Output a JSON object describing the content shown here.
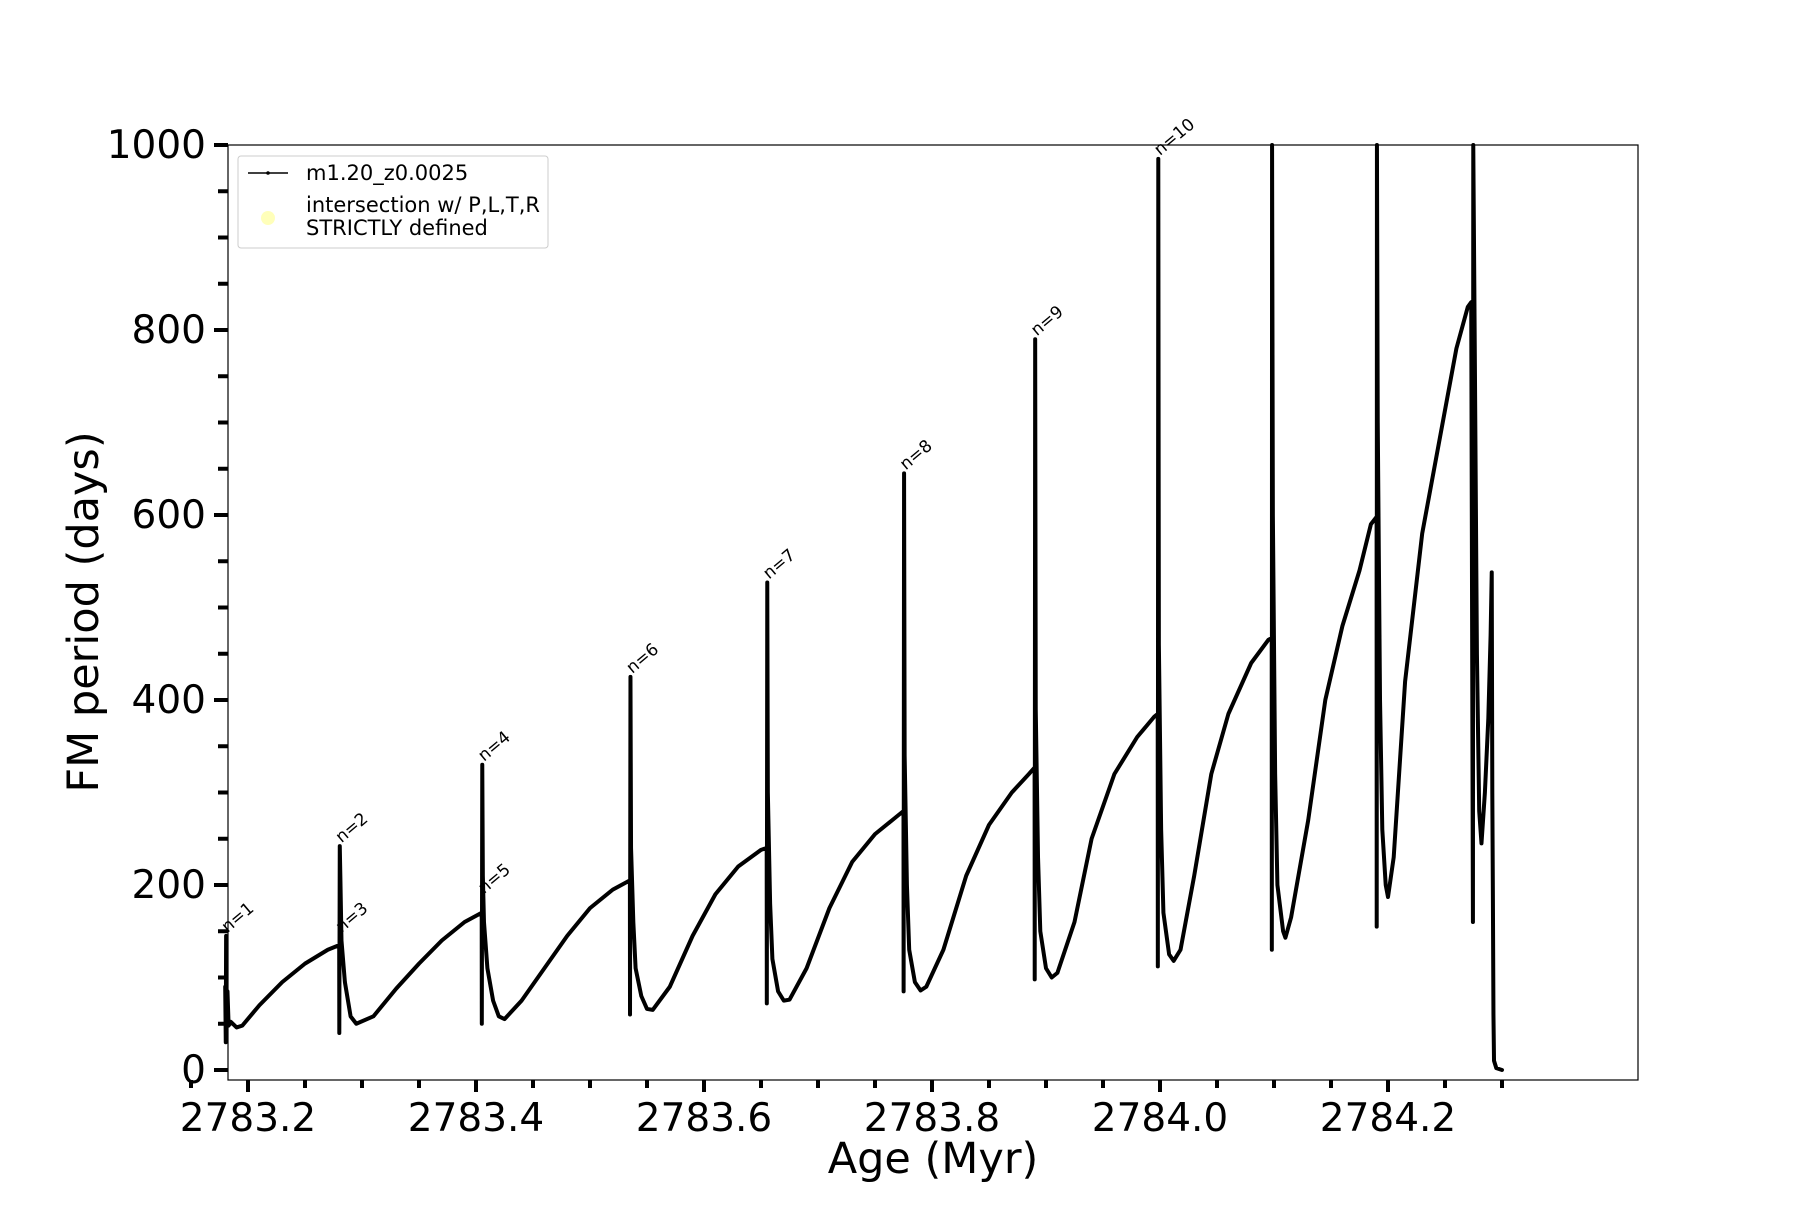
{
  "chart_data": {
    "type": "line",
    "title": "",
    "xlabel": "Age (Myr)",
    "ylabel": "FM period (days)",
    "xlim": [
      2783.13,
      2784.33
    ],
    "ylim": [
      -10,
      1000
    ],
    "x_ticks": [
      2783.2,
      2783.4,
      2783.6,
      2783.8,
      2784.0,
      2784.2
    ],
    "x_tick_labels": [
      "2783.2",
      "2783.4",
      "2783.6",
      "2783.8",
      "2784.0",
      "2784.2"
    ],
    "x_minor_ticks": [
      2783.15,
      2783.25,
      2783.3,
      2783.35,
      2783.45,
      2783.5,
      2783.55,
      2783.65,
      2783.7,
      2783.75,
      2783.85,
      2783.9,
      2783.95,
      2784.05,
      2784.1,
      2784.15,
      2784.25,
      2784.3
    ],
    "y_ticks": [
      0,
      200,
      400,
      600,
      800,
      1000
    ],
    "y_tick_labels": [
      "0",
      "200",
      "400",
      "600",
      "800",
      "1000"
    ],
    "y_minor_ticks": [
      50,
      100,
      150,
      250,
      300,
      350,
      450,
      500,
      550,
      650,
      700,
      750,
      850,
      900,
      950
    ],
    "grid": false,
    "legend_position": "top-left",
    "legend": [
      {
        "label": "m1.20_z0.0025",
        "marker": "line-dot",
        "color": "#000000"
      },
      {
        "label_lines": [
          "intersection w/ P,L,T,R",
          "STRICTLY defined"
        ],
        "marker": "circle",
        "color": "#ffffb3"
      }
    ],
    "series": [
      {
        "name": "m1.20_z0.0025",
        "color": "#000000",
        "points": [
          [
            2783.18,
            90
          ],
          [
            2783.1805,
            30
          ],
          [
            2783.1808,
            145
          ],
          [
            2783.181,
            40
          ],
          [
            2783.182,
            85
          ],
          [
            2783.183,
            48
          ],
          [
            2783.185,
            52
          ],
          [
            2783.19,
            46
          ],
          [
            2783.195,
            48
          ],
          [
            2783.21,
            70
          ],
          [
            2783.23,
            95
          ],
          [
            2783.25,
            115
          ],
          [
            2783.27,
            130
          ],
          [
            2783.28,
            135
          ],
          [
            2783.2801,
            40
          ],
          [
            2783.2805,
            242
          ],
          [
            2783.281,
            210
          ],
          [
            2783.282,
            140
          ],
          [
            2783.285,
            95
          ],
          [
            2783.29,
            58
          ],
          [
            2783.295,
            50
          ],
          [
            2783.31,
            58
          ],
          [
            2783.33,
            88
          ],
          [
            2783.35,
            115
          ],
          [
            2783.37,
            140
          ],
          [
            2783.39,
            160
          ],
          [
            2783.405,
            170
          ],
          [
            2783.4051,
            50
          ],
          [
            2783.4055,
            330
          ],
          [
            2783.406,
            210
          ],
          [
            2783.407,
            160
          ],
          [
            2783.41,
            110
          ],
          [
            2783.415,
            75
          ],
          [
            2783.42,
            58
          ],
          [
            2783.425,
            55
          ],
          [
            2783.44,
            75
          ],
          [
            2783.46,
            110
          ],
          [
            2783.48,
            145
          ],
          [
            2783.5,
            175
          ],
          [
            2783.52,
            195
          ],
          [
            2783.535,
            205
          ],
          [
            2783.5351,
            60
          ],
          [
            2783.5355,
            425
          ],
          [
            2783.536,
            240
          ],
          [
            2783.538,
            160
          ],
          [
            2783.54,
            110
          ],
          [
            2783.545,
            80
          ],
          [
            2783.55,
            66
          ],
          [
            2783.555,
            65
          ],
          [
            2783.57,
            90
          ],
          [
            2783.59,
            145
          ],
          [
            2783.61,
            190
          ],
          [
            2783.63,
            220
          ],
          [
            2783.65,
            238
          ],
          [
            2783.655,
            240
          ],
          [
            2783.6551,
            72
          ],
          [
            2783.6555,
            527
          ],
          [
            2783.656,
            300
          ],
          [
            2783.658,
            180
          ],
          [
            2783.66,
            120
          ],
          [
            2783.665,
            85
          ],
          [
            2783.67,
            75
          ],
          [
            2783.675,
            76
          ],
          [
            2783.69,
            110
          ],
          [
            2783.71,
            175
          ],
          [
            2783.73,
            225
          ],
          [
            2783.75,
            255
          ],
          [
            2783.77,
            275
          ],
          [
            2783.775,
            280
          ],
          [
            2783.7751,
            85
          ],
          [
            2783.7755,
            645
          ],
          [
            2783.776,
            340
          ],
          [
            2783.778,
            200
          ],
          [
            2783.78,
            130
          ],
          [
            2783.785,
            95
          ],
          [
            2783.79,
            86
          ],
          [
            2783.795,
            90
          ],
          [
            2783.81,
            130
          ],
          [
            2783.83,
            210
          ],
          [
            2783.85,
            265
          ],
          [
            2783.87,
            300
          ],
          [
            2783.885,
            320
          ],
          [
            2783.89,
            327
          ],
          [
            2783.8901,
            98
          ],
          [
            2783.8905,
            790
          ],
          [
            2783.891,
            390
          ],
          [
            2783.893,
            230
          ],
          [
            2783.895,
            150
          ],
          [
            2783.9,
            110
          ],
          [
            2783.905,
            100
          ],
          [
            2783.91,
            105
          ],
          [
            2783.925,
            160
          ],
          [
            2783.94,
            250
          ],
          [
            2783.96,
            320
          ],
          [
            2783.98,
            360
          ],
          [
            2783.995,
            382
          ],
          [
            2783.998,
            385
          ],
          [
            2783.9981,
            112
          ],
          [
            2783.9985,
            985
          ],
          [
            2783.999,
            460
          ],
          [
            2784.001,
            260
          ],
          [
            2784.003,
            170
          ],
          [
            2784.008,
            125
          ],
          [
            2784.012,
            118
          ],
          [
            2784.018,
            130
          ],
          [
            2784.03,
            210
          ],
          [
            2784.045,
            320
          ],
          [
            2784.06,
            385
          ],
          [
            2784.08,
            440
          ],
          [
            2784.095,
            465
          ],
          [
            2784.098,
            467
          ],
          [
            2784.0981,
            130
          ],
          [
            2784.0983,
            1000
          ],
          [
            2784.099,
            600
          ],
          [
            2784.101,
            320
          ],
          [
            2784.103,
            200
          ],
          [
            2784.108,
            150
          ],
          [
            2784.11,
            143
          ],
          [
            2784.115,
            165
          ],
          [
            2784.13,
            270
          ],
          [
            2784.145,
            400
          ],
          [
            2784.16,
            480
          ],
          [
            2784.175,
            540
          ],
          [
            2784.185,
            590
          ],
          [
            2784.19,
            598
          ],
          [
            2784.1901,
            155
          ],
          [
            2784.1903,
            1000
          ],
          [
            2784.191,
            700
          ],
          [
            2784.193,
            400
          ],
          [
            2784.195,
            260
          ],
          [
            2784.198,
            200
          ],
          [
            2784.2,
            187
          ],
          [
            2784.205,
            230
          ],
          [
            2784.215,
            420
          ],
          [
            2784.23,
            580
          ],
          [
            2784.245,
            680
          ],
          [
            2784.26,
            780
          ],
          [
            2784.27,
            825
          ],
          [
            2784.273,
            830
          ],
          [
            2784.2745,
            160
          ],
          [
            2784.2748,
            1000
          ],
          [
            2784.276,
            800
          ],
          [
            2784.278,
            450
          ],
          [
            2784.28,
            280
          ],
          [
            2784.282,
            245
          ],
          [
            2784.285,
            300
          ],
          [
            2784.288,
            380
          ],
          [
            2784.29,
            470
          ],
          [
            2784.291,
            538
          ],
          [
            2784.2915,
            300
          ],
          [
            2784.292,
            190
          ],
          [
            2784.2925,
            60
          ],
          [
            2784.293,
            10
          ],
          [
            2784.295,
            2
          ],
          [
            2784.3,
            0
          ]
        ]
      }
    ],
    "annotations": [
      {
        "text": "n=1",
        "x": 2783.182,
        "y": 148
      },
      {
        "text": "n=2",
        "x": 2783.282,
        "y": 245
      },
      {
        "text": "n=3",
        "x": 2783.282,
        "y": 148
      },
      {
        "text": "n=4",
        "x": 2783.407,
        "y": 333
      },
      {
        "text": "n=5",
        "x": 2783.407,
        "y": 190
      },
      {
        "text": "n=6",
        "x": 2783.537,
        "y": 428
      },
      {
        "text": "n=7",
        "x": 2783.657,
        "y": 530
      },
      {
        "text": "n=8",
        "x": 2783.777,
        "y": 648
      },
      {
        "text": "n=9",
        "x": 2783.892,
        "y": 793
      },
      {
        "text": "n=10",
        "x": 2784.0,
        "y": 988
      }
    ]
  }
}
